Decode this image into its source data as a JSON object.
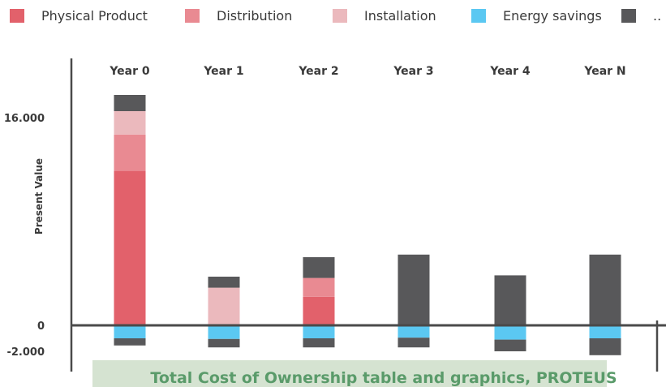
{
  "chart_data": {
    "type": "bar",
    "stacked": true,
    "ylabel": "Present Value",
    "categories": [
      "Year 0",
      "Year 1",
      "Year 2",
      "Year 3",
      "Year 4",
      "Year N"
    ],
    "y_ticks": [
      {
        "value": 16000,
        "label": "16.000"
      },
      {
        "value": 0,
        "label": "0"
      },
      {
        "value": -2000,
        "label": "-2.000"
      }
    ],
    "ylim": [
      -2600,
      17500
    ],
    "series": [
      {
        "name": "Physical Product",
        "color": "#e2616b",
        "values": [
          11900,
          0,
          2200,
          0,
          0,
          0
        ]
      },
      {
        "name": "Distribution",
        "color": "#e98a92",
        "values": [
          2800,
          0,
          1450,
          0,
          0,
          0
        ]
      },
      {
        "name": "Installation",
        "color": "#ebb9bd",
        "values": [
          1800,
          2900,
          0,
          0,
          0,
          0
        ]
      },
      {
        "name": "Energy savings",
        "color": "#5bc8f2",
        "values": [
          -1000,
          -1050,
          -1000,
          -950,
          -1100,
          -1000
        ]
      },
      {
        "name": "..",
        "color": "#58585a",
        "values": [
          1250,
          850,
          1600,
          5450,
          3850,
          5450
        ]
      }
    ],
    "negative_dark_values": [
      -550,
      -650,
      -700,
      -750,
      -900,
      -1300
    ],
    "caption": "Total Cost of Ownership table and graphics, PROTEUS",
    "legend_position": "top"
  }
}
